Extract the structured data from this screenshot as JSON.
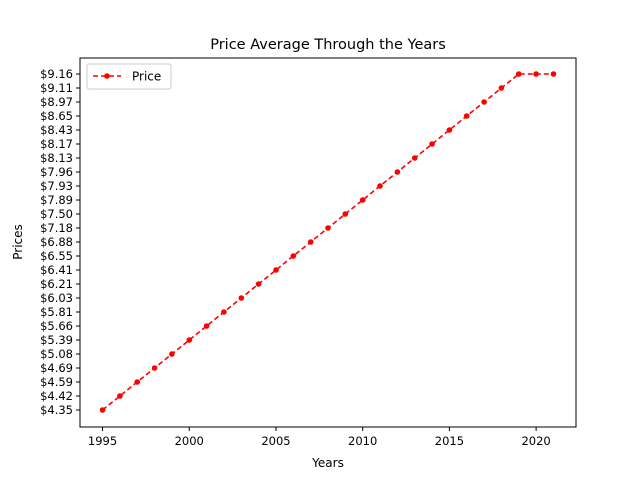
{
  "chart_data": {
    "type": "line",
    "title": "Price Average Through the Years",
    "xlabel": "Years",
    "ylabel": "Prices",
    "x": [
      1995,
      1996,
      1997,
      1998,
      1999,
      2000,
      2001,
      2002,
      2003,
      2004,
      2005,
      2006,
      2007,
      2008,
      2009,
      2010,
      2011,
      2012,
      2013,
      2014,
      2015,
      2016,
      2017,
      2018,
      2019,
      2020,
      2021
    ],
    "categories": [
      "$4.35",
      "$4.42",
      "$4.59",
      "$4.69",
      "$5.08",
      "$5.39",
      "$5.66",
      "$5.81",
      "$6.03",
      "$6.21",
      "$6.41",
      "$6.55",
      "$6.88",
      "$7.18",
      "$7.50",
      "$7.89",
      "$7.93",
      "$7.96",
      "$8.13",
      "$8.17",
      "$8.43",
      "$8.65",
      "$8.97",
      "$9.11",
      "$9.16"
    ],
    "series": [
      {
        "name": "Price",
        "color": "#ff0000",
        "values": [
          "$4.35",
          "$4.42",
          "$4.59",
          "$4.69",
          "$5.08",
          "$5.39",
          "$5.66",
          "$5.81",
          "$6.03",
          "$6.21",
          "$6.41",
          "$6.55",
          "$6.88",
          "$7.18",
          "$7.50",
          "$7.89",
          "$7.93",
          "$7.96",
          "$8.13",
          "$8.17",
          "$8.43",
          "$8.65",
          "$8.97",
          "$9.11",
          "$9.16",
          "$9.16",
          "$9.16"
        ]
      }
    ],
    "xticks": [
      1995,
      2000,
      2005,
      2010,
      2015,
      2020
    ],
    "xlim": [
      1993.7,
      2022.3
    ],
    "y_axis_kind": "categorical",
    "grid": false,
    "legend_position": "top-left"
  }
}
